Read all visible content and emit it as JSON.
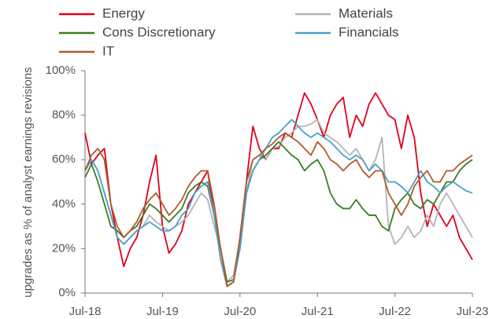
{
  "chart_data": {
    "type": "line",
    "ylabel": "upgrades as % of analyst earnings revisions",
    "categories": [
      "Jul-18",
      null,
      null,
      null,
      null,
      null,
      null,
      null,
      null,
      null,
      null,
      null,
      "Jul-19",
      null,
      null,
      null,
      null,
      null,
      null,
      null,
      null,
      null,
      null,
      null,
      "Jul-20",
      null,
      null,
      null,
      null,
      null,
      null,
      null,
      null,
      null,
      null,
      null,
      "Jul-21",
      null,
      null,
      null,
      null,
      null,
      null,
      null,
      null,
      null,
      null,
      null,
      "Jul-22",
      null,
      null,
      null,
      null,
      null,
      null,
      null,
      null,
      null,
      null,
      null,
      "Jul-23"
    ],
    "series": [
      {
        "name": "Energy",
        "color": "#e0001a",
        "values": [
          72,
          58,
          62,
          65,
          40,
          25,
          12,
          20,
          25,
          35,
          50,
          62,
          30,
          18,
          22,
          28,
          40,
          45,
          50,
          55,
          35,
          20,
          3,
          5,
          25,
          50,
          75,
          65,
          60,
          65,
          65,
          72,
          70,
          80,
          90,
          85,
          78,
          70,
          80,
          85,
          88,
          70,
          80,
          75,
          85,
          90,
          85,
          80,
          78,
          65,
          80,
          70,
          45,
          30,
          40,
          35,
          30,
          35,
          25,
          20,
          15
        ]
      },
      {
        "name": "Materials",
        "color": "#b4b4b4",
        "values": [
          55,
          60,
          55,
          45,
          35,
          25,
          22,
          25,
          28,
          30,
          35,
          32,
          30,
          28,
          30,
          32,
          35,
          40,
          45,
          42,
          30,
          20,
          5,
          8,
          25,
          45,
          60,
          62,
          60,
          65,
          66,
          70,
          72,
          75,
          75,
          76,
          78,
          72,
          70,
          68,
          65,
          62,
          65,
          60,
          55,
          60,
          70,
          30,
          22,
          25,
          30,
          25,
          28,
          35,
          30,
          40,
          45,
          40,
          35,
          30,
          25
        ]
      },
      {
        "name": "Cons Discretionary",
        "color": "#3a7d22",
        "values": [
          52,
          58,
          50,
          40,
          30,
          28,
          25,
          28,
          30,
          35,
          40,
          38,
          35,
          32,
          35,
          38,
          45,
          48,
          50,
          48,
          35,
          20,
          5,
          6,
          20,
          45,
          55,
          60,
          62,
          65,
          68,
          65,
          62,
          60,
          55,
          58,
          60,
          55,
          45,
          40,
          38,
          38,
          42,
          38,
          35,
          35,
          30,
          28,
          38,
          42,
          45,
          40,
          38,
          42,
          40,
          45,
          50,
          50,
          55,
          58,
          60
        ]
      },
      {
        "name": "Financials",
        "color": "#4aa0c8",
        "values": [
          55,
          60,
          55,
          45,
          35,
          25,
          22,
          25,
          28,
          30,
          32,
          30,
          28,
          28,
          30,
          35,
          38,
          45,
          48,
          50,
          35,
          15,
          3,
          5,
          20,
          45,
          55,
          60,
          65,
          70,
          72,
          75,
          78,
          75,
          72,
          70,
          72,
          70,
          68,
          65,
          62,
          60,
          62,
          60,
          55,
          58,
          55,
          50,
          50,
          48,
          45,
          50,
          55,
          50,
          48,
          45,
          48,
          50,
          48,
          46,
          45
        ]
      },
      {
        "name": "IT",
        "color": "#b05a2e",
        "values": [
          55,
          62,
          65,
          60,
          40,
          30,
          25,
          28,
          32,
          38,
          42,
          45,
          40,
          35,
          38,
          42,
          48,
          52,
          55,
          55,
          40,
          20,
          3,
          5,
          25,
          50,
          60,
          62,
          65,
          67,
          70,
          72,
          70,
          68,
          65,
          62,
          68,
          65,
          60,
          58,
          55,
          58,
          60,
          55,
          52,
          55,
          55,
          45,
          40,
          35,
          40,
          48,
          52,
          55,
          50,
          50,
          55,
          55,
          58,
          60,
          62
        ]
      }
    ],
    "ylim": [
      0,
      100
    ],
    "yticks": [
      {
        "value": 0,
        "label": "0%"
      },
      {
        "value": 20,
        "label": "20%"
      },
      {
        "value": 40,
        "label": "40%"
      },
      {
        "value": 60,
        "label": "60%"
      },
      {
        "value": 80,
        "label": "80%"
      },
      {
        "value": 100,
        "label": "100%"
      }
    ],
    "grid": false,
    "legend": "top"
  }
}
